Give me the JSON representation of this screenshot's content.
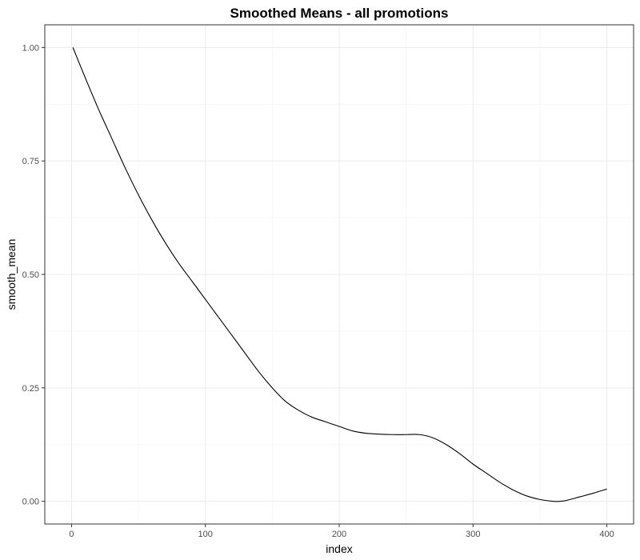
{
  "chart_data": {
    "type": "line",
    "title": "Smoothed Means - all promotions",
    "xlabel": "index",
    "ylabel": "smooth_mean",
    "xlim": [
      -20,
      420
    ],
    "ylim": [
      -0.05,
      1.05
    ],
    "x_ticks": [
      0,
      100,
      200,
      300,
      400
    ],
    "x_tick_labels": [
      "0",
      "100",
      "200",
      "300",
      "400"
    ],
    "y_ticks": [
      0,
      0.25,
      0.5,
      0.75,
      1.0
    ],
    "y_tick_labels": [
      "0.00",
      "0.25",
      "0.50",
      "0.75",
      "1.00"
    ],
    "grid": true,
    "legend": "none",
    "series": [
      {
        "color": "#000000",
        "x": [
          1,
          10,
          20,
          30,
          40,
          50,
          60,
          70,
          80,
          90,
          100,
          110,
          120,
          130,
          140,
          150,
          160,
          170,
          180,
          190,
          200,
          210,
          220,
          230,
          240,
          250,
          260,
          270,
          280,
          290,
          300,
          310,
          320,
          330,
          340,
          350,
          360,
          365,
          370,
          380,
          390,
          400
        ],
        "y": [
          1.0,
          0.935,
          0.865,
          0.8,
          0.735,
          0.675,
          0.62,
          0.57,
          0.525,
          0.485,
          0.445,
          0.405,
          0.365,
          0.325,
          0.285,
          0.25,
          0.22,
          0.2,
          0.185,
          0.175,
          0.165,
          0.155,
          0.15,
          0.148,
          0.147,
          0.147,
          0.147,
          0.14,
          0.125,
          0.105,
          0.082,
          0.062,
          0.042,
          0.025,
          0.012,
          0.004,
          0.0,
          0.0,
          0.002,
          0.01,
          0.018,
          0.027
        ]
      }
    ]
  }
}
